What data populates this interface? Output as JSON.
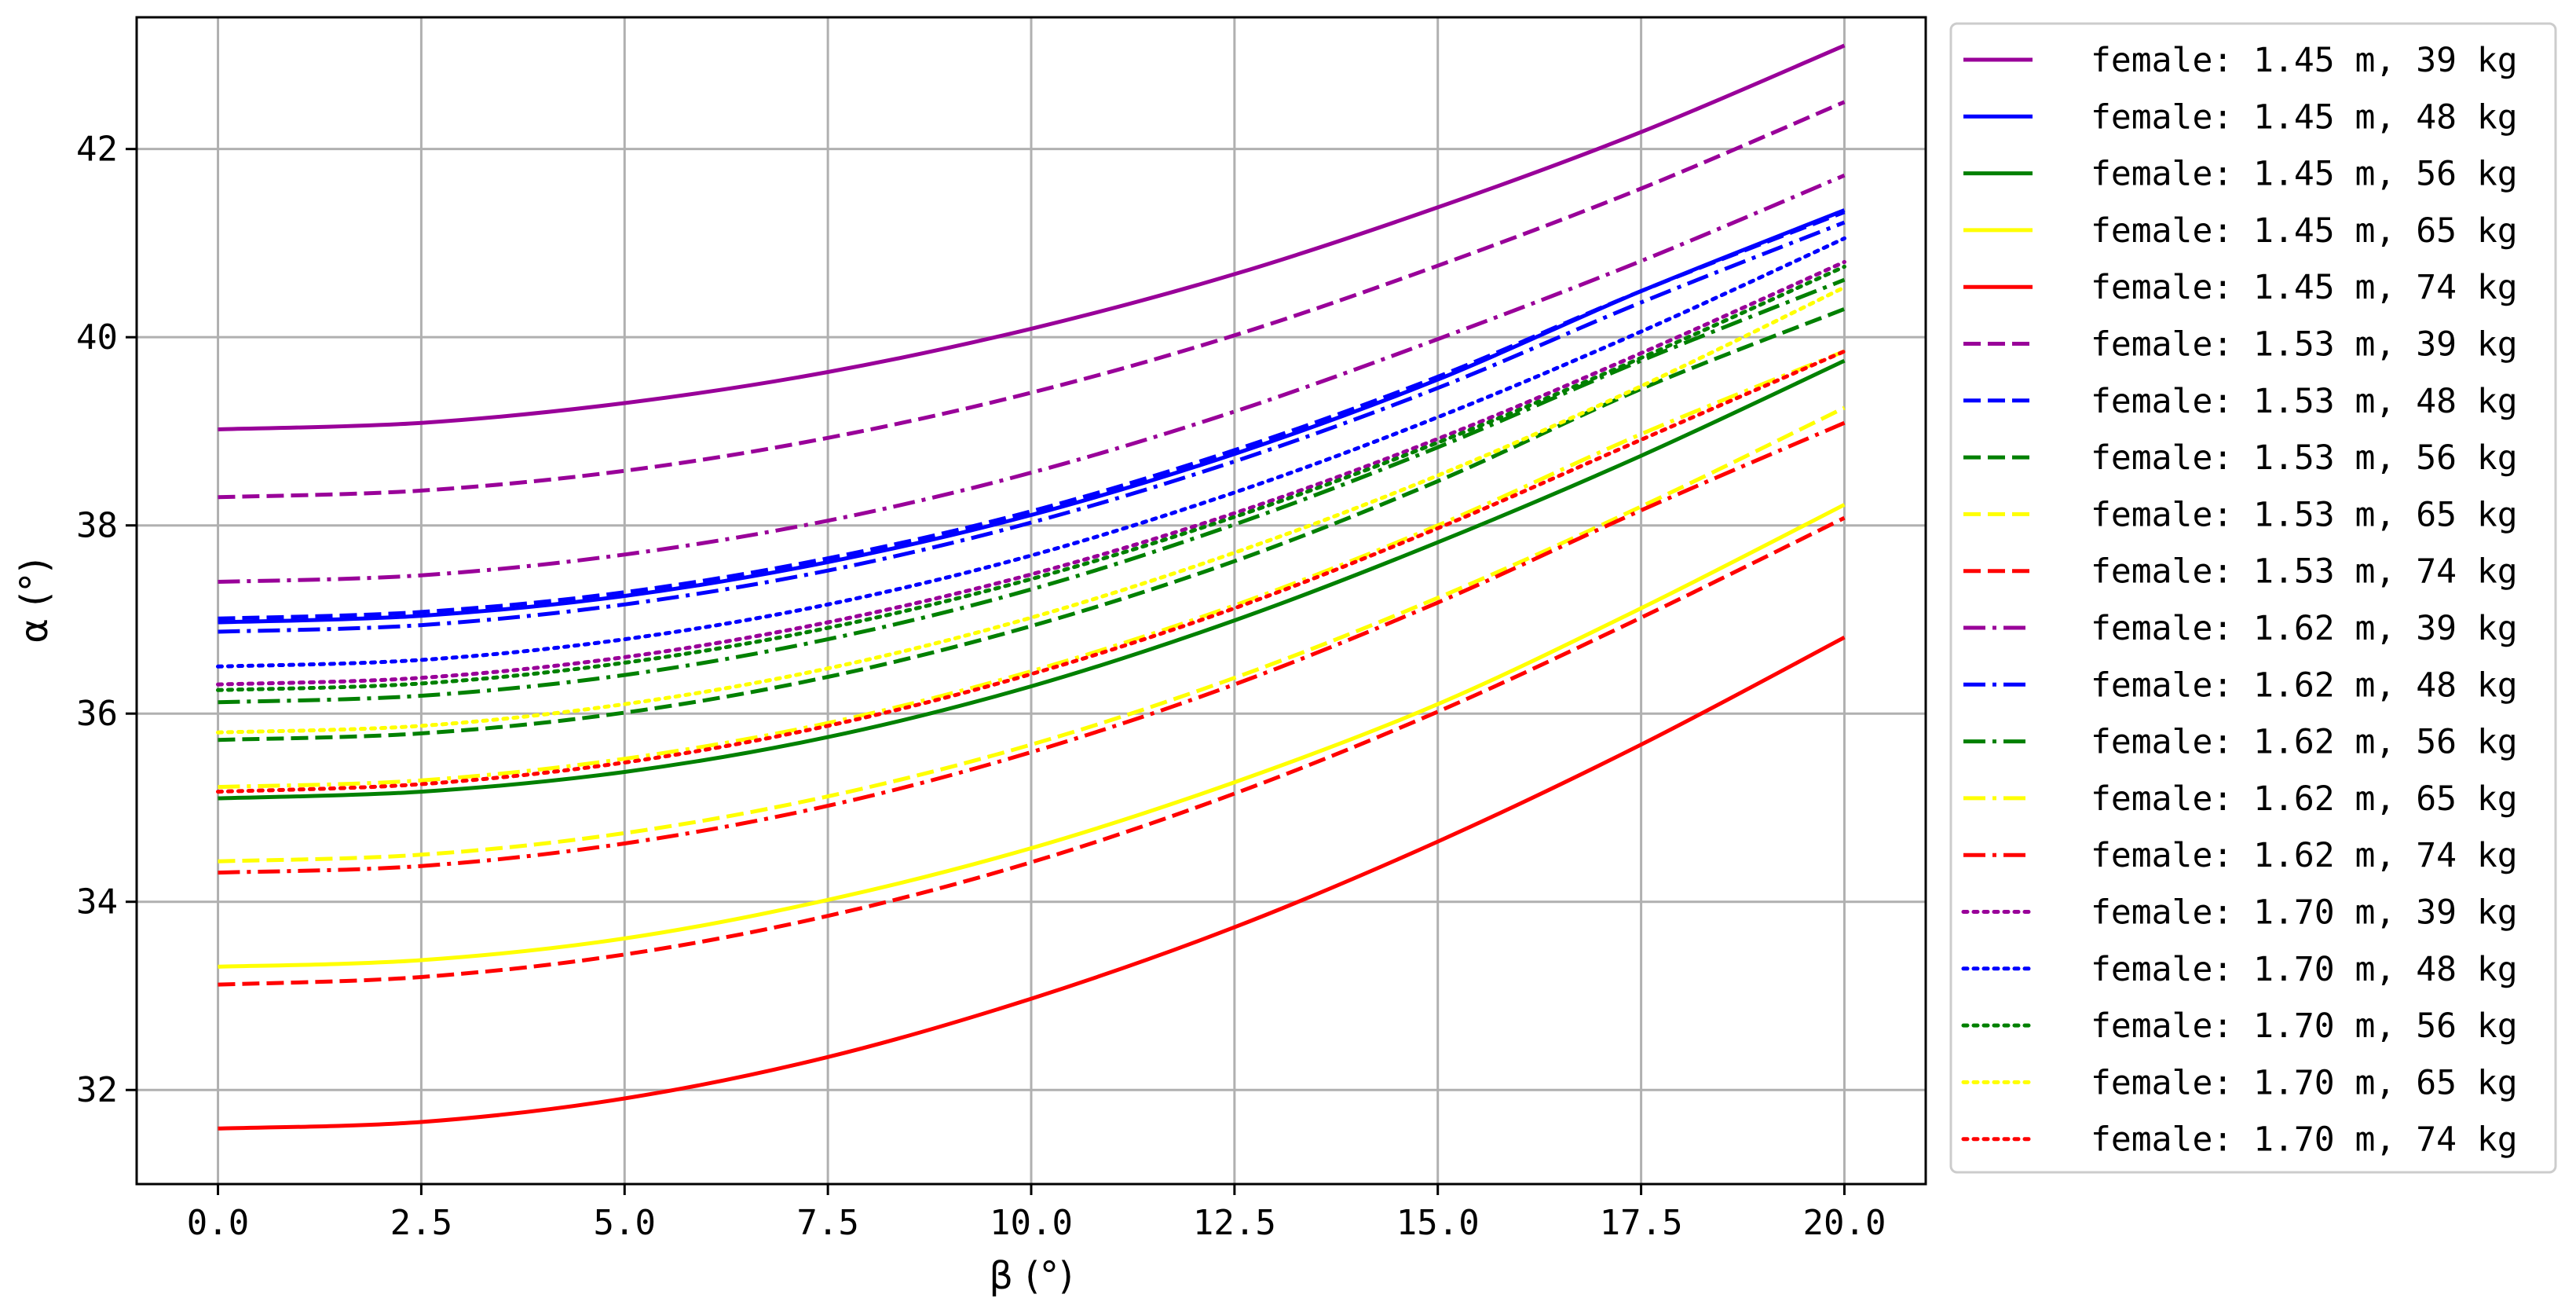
{
  "chart_data": {
    "type": "line",
    "title": "",
    "xlabel": "β (°)",
    "ylabel": "α (°)",
    "xlim": [
      -1,
      21
    ],
    "ylim": [
      31,
      43.4
    ],
    "xticks": [
      0.0,
      2.5,
      5.0,
      7.5,
      10.0,
      12.5,
      15.0,
      17.5,
      20.0
    ],
    "xtick_labels": [
      "0.0",
      "2.5",
      "5.0",
      "7.5",
      "10.0",
      "12.5",
      "15.0",
      "17.5",
      "20.0"
    ],
    "yticks": [
      32,
      34,
      36,
      38,
      40,
      42
    ],
    "ytick_labels": [
      "32",
      "34",
      "36",
      "38",
      "40",
      "42"
    ],
    "grid": true,
    "legend_position": "outside-right",
    "x": [
      0,
      2.5,
      5,
      7.5,
      10,
      12.5,
      15,
      17.5,
      20
    ],
    "series": [
      {
        "name": "female: 1.45 m, 39 kg",
        "color": "#990099",
        "style": "solid",
        "values": [
          39.02,
          39.09,
          39.3,
          39.63,
          40.09,
          40.67,
          41.38,
          42.18,
          43.1
        ]
      },
      {
        "name": "female: 1.45 m, 48 kg",
        "color": "#0000ff",
        "style": "solid",
        "values": [
          36.97,
          37.04,
          37.25,
          37.61,
          38.11,
          38.76,
          39.55,
          40.49,
          41.35
        ]
      },
      {
        "name": "female: 1.45 m, 56 kg",
        "color": "#008000",
        "style": "solid",
        "values": [
          35.1,
          35.17,
          35.38,
          35.75,
          36.29,
          36.99,
          37.82,
          38.74,
          39.75
        ]
      },
      {
        "name": "female: 1.45 m, 65 kg",
        "color": "#ffff00",
        "style": "solid",
        "values": [
          33.31,
          33.38,
          33.61,
          34.02,
          34.57,
          35.27,
          36.1,
          37.12,
          38.22
        ]
      },
      {
        "name": "female: 1.45 m, 74 kg",
        "color": "#ff0000",
        "style": "solid",
        "values": [
          31.59,
          31.66,
          31.91,
          32.35,
          32.97,
          33.73,
          34.64,
          35.67,
          36.81
        ]
      },
      {
        "name": "female: 1.53 m, 39 kg",
        "color": "#990099",
        "style": "dashed",
        "values": [
          38.3,
          38.37,
          38.58,
          38.93,
          39.41,
          40.02,
          40.76,
          41.58,
          42.5
        ]
      },
      {
        "name": "female: 1.53 m, 48 kg",
        "color": "#0000ff",
        "style": "dashed",
        "values": [
          37.01,
          37.08,
          37.29,
          37.65,
          38.15,
          38.8,
          39.58,
          40.49,
          41.33
        ]
      },
      {
        "name": "female: 1.53 m, 56 kg",
        "color": "#008000",
        "style": "dashed",
        "values": [
          35.72,
          35.79,
          36.01,
          36.39,
          36.93,
          37.62,
          38.47,
          39.45,
          40.3
        ]
      },
      {
        "name": "female: 1.53 m, 65 kg",
        "color": "#ffff00",
        "style": "dashed",
        "values": [
          34.43,
          34.5,
          34.73,
          35.12,
          35.67,
          36.38,
          37.23,
          38.2,
          39.25
        ]
      },
      {
        "name": "female: 1.53 m, 74 kg",
        "color": "#ff0000",
        "style": "dashed",
        "values": [
          33.12,
          33.2,
          33.44,
          33.85,
          34.42,
          35.15,
          36.02,
          37.02,
          38.08
        ]
      },
      {
        "name": "female: 1.62 m, 39 kg",
        "color": "#990099",
        "style": "dashdot",
        "values": [
          37.4,
          37.47,
          37.69,
          38.05,
          38.56,
          39.21,
          39.98,
          40.81,
          41.72
        ]
      },
      {
        "name": "female: 1.62 m, 48 kg",
        "color": "#0000ff",
        "style": "dashdot",
        "values": [
          36.87,
          36.94,
          37.16,
          37.52,
          38.03,
          38.68,
          39.46,
          40.37,
          41.22
        ]
      },
      {
        "name": "female: 1.62 m, 56 kg",
        "color": "#008000",
        "style": "dashdot",
        "values": [
          36.12,
          36.19,
          36.41,
          36.79,
          37.32,
          38.01,
          38.83,
          39.75,
          40.61
        ]
      },
      {
        "name": "female: 1.62 m, 65 kg",
        "color": "#ffff00",
        "style": "dashdot",
        "values": [
          35.22,
          35.29,
          35.52,
          35.9,
          36.45,
          37.15,
          38.0,
          38.97,
          39.85
        ]
      },
      {
        "name": "female: 1.62 m, 74 kg",
        "color": "#ff0000",
        "style": "dashdot",
        "values": [
          34.31,
          34.38,
          34.62,
          35.02,
          35.59,
          36.31,
          37.18,
          38.16,
          39.09
        ]
      },
      {
        "name": "female: 1.70 m, 39 kg",
        "color": "#990099",
        "style": "dotted",
        "values": [
          36.31,
          36.38,
          36.6,
          36.97,
          37.48,
          38.13,
          38.92,
          39.83,
          40.8
        ]
      },
      {
        "name": "female: 1.70 m, 48 kg",
        "color": "#0000ff",
        "style": "dotted",
        "values": [
          36.5,
          36.57,
          36.79,
          37.16,
          37.68,
          38.35,
          39.15,
          40.06,
          41.05
        ]
      },
      {
        "name": "female: 1.70 m, 56 kg",
        "color": "#008000",
        "style": "dotted",
        "values": [
          36.25,
          36.32,
          36.54,
          36.91,
          37.43,
          38.09,
          38.88,
          39.78,
          40.75
        ]
      },
      {
        "name": "female: 1.70 m, 65 kg",
        "color": "#ffff00",
        "style": "dotted",
        "values": [
          35.8,
          35.87,
          36.1,
          36.48,
          37.02,
          37.71,
          38.53,
          39.48,
          40.53
        ]
      },
      {
        "name": "female: 1.70 m, 74 kg",
        "color": "#ff0000",
        "style": "dotted",
        "values": [
          35.17,
          35.25,
          35.48,
          35.87,
          36.42,
          37.12,
          37.97,
          38.91,
          39.85
        ]
      }
    ]
  }
}
